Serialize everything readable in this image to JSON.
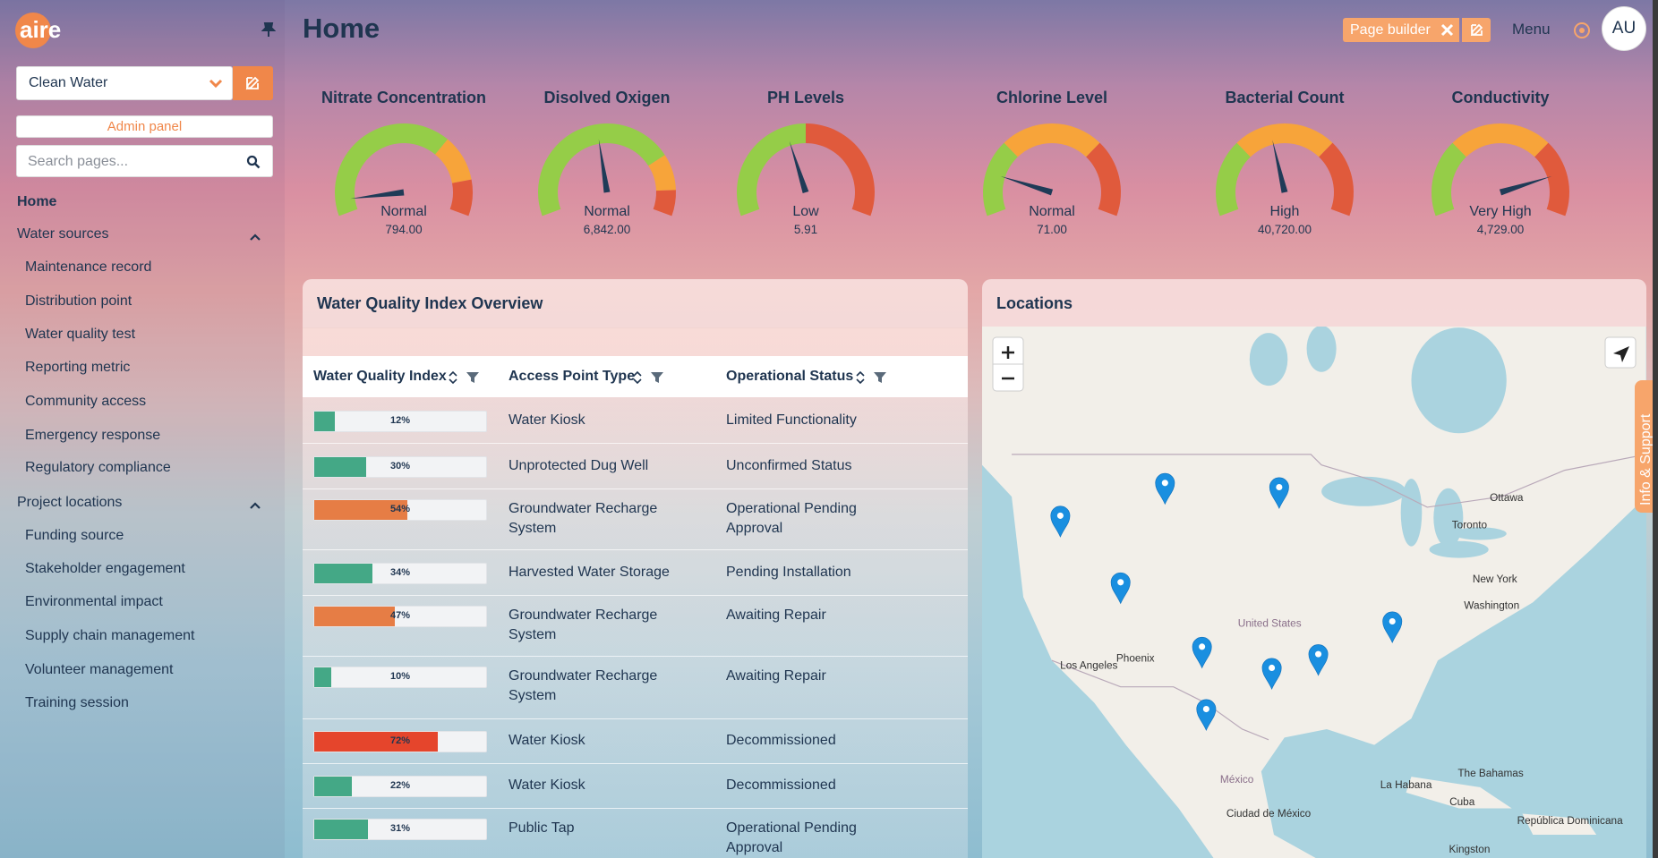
{
  "sidebar": {
    "logo": "aire",
    "workspace": "Clean Water",
    "admin_button": "Admin panel",
    "search_placeholder": "Search pages...",
    "nav": [
      {
        "label": "Home"
      },
      {
        "label": "Water sources",
        "children": [
          "Maintenance record",
          "Distribution point",
          "Water quality test",
          "Reporting metric",
          "Community access",
          "Emergency response",
          "Regulatory compliance"
        ]
      },
      {
        "label": "Project locations",
        "children": [
          "Funding source",
          "Stakeholder engagement",
          "Environmental impact",
          "Supply chain management",
          "Volunteer management",
          "Training session"
        ]
      }
    ]
  },
  "header": {
    "title": "Home",
    "page_builder": "Page builder",
    "menu": "Menu",
    "avatar": "AU"
  },
  "gauges": [
    {
      "title": "Nitrate Concentration",
      "status": "Normal",
      "value": "794.00"
    },
    {
      "title": "Disolved Oxigen",
      "status": "Normal",
      "value": "6,842.00"
    },
    {
      "title": "PH Levels",
      "status": "Low",
      "value": "5.91"
    },
    {
      "title": "Chlorine Level",
      "status": "Normal",
      "value": "71.00"
    },
    {
      "title": "Bacterial Count",
      "status": "High",
      "value": "40,720.00"
    },
    {
      "title": "Conductivity",
      "status": "Very High",
      "value": "4,729.00"
    }
  ],
  "table": {
    "title": "Water Quality Index Overview",
    "columns": [
      "Water Quality Index",
      "Access Point Type",
      "Operational Status"
    ],
    "rows": [
      {
        "wqi": {
          "value": 12,
          "label": "12%"
        },
        "color": "#44a886",
        "access_point": "Water Kiosk",
        "status": "Limited Functionality"
      },
      {
        "wqi": {
          "value": 30,
          "label": "30%"
        },
        "color": "#44a886",
        "access_point": "Unprotected Dug Well",
        "status": "Unconfirmed Status"
      },
      {
        "wqi": {
          "value": 54,
          "label": "54%"
        },
        "color": "#e67d45",
        "access_point": "Groundwater Recharge System",
        "status": "Operational Pending Approval"
      },
      {
        "wqi": {
          "value": 34,
          "label": "34%"
        },
        "color": "#44a886",
        "access_point": "Harvested Water Storage",
        "status": "Pending Installation"
      },
      {
        "wqi": {
          "value": 47,
          "label": "47%"
        },
        "color": "#e67d45",
        "access_point": "Groundwater Recharge System",
        "status": "Awaiting Repair"
      },
      {
        "wqi": {
          "value": 10,
          "label": "10%"
        },
        "color": "#44a886",
        "access_point": "Groundwater Recharge System",
        "status": "Awaiting Repair"
      },
      {
        "wqi": {
          "value": 72,
          "label": "72%"
        },
        "color": "#e5452c",
        "access_point": "Water Kiosk",
        "status": "Decommissioned"
      },
      {
        "wqi": {
          "value": 22,
          "label": "22%"
        },
        "color": "#44a886",
        "access_point": "Water Kiosk",
        "status": "Decommissioned"
      },
      {
        "wqi": {
          "value": 31,
          "label": "31%"
        },
        "color": "#44a886",
        "access_point": "Public Tap",
        "status": "Operational Pending Approval"
      }
    ]
  },
  "map": {
    "title": "Locations",
    "labels": [
      "Ottawa",
      "Toronto",
      "New York",
      "Washington",
      "United States",
      "Phoenix",
      "Los Angeles",
      "México",
      "Ciudad de México",
      "La Habana",
      "The Bahamas",
      "Cuba",
      "República Dominicana",
      "Kingston"
    ]
  },
  "info_tab": "Info & Support"
}
